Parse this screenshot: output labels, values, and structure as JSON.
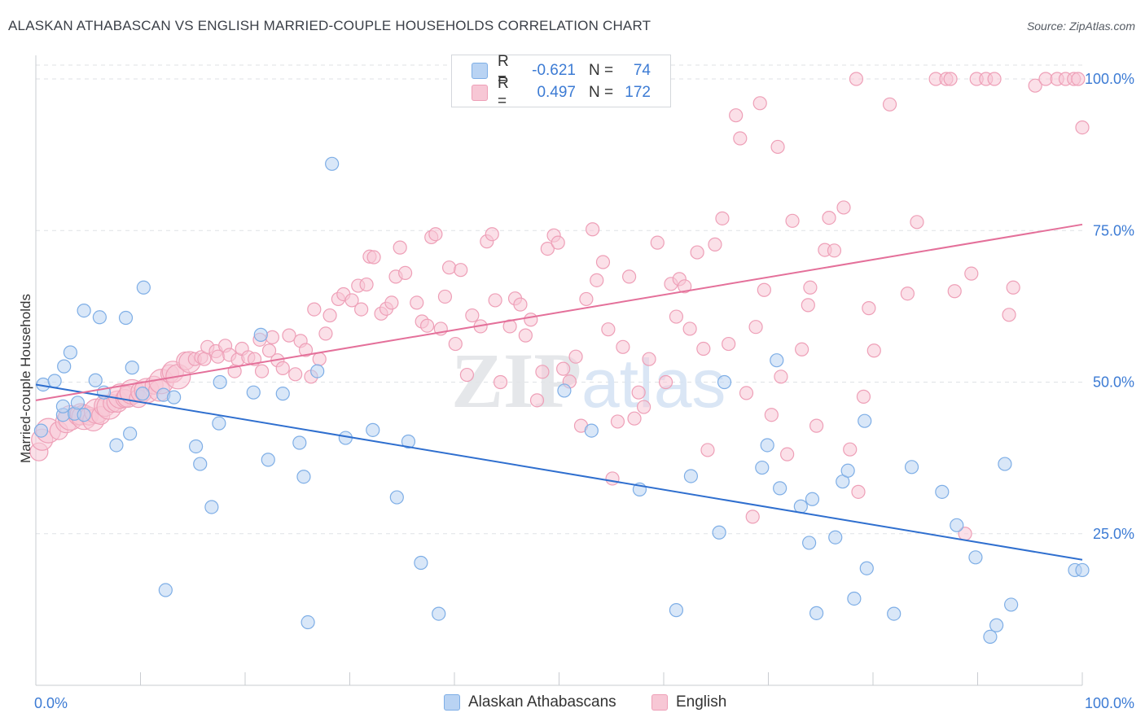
{
  "title": "ALASKAN ATHABASCAN VS ENGLISH MARRIED-COUPLE HOUSEHOLDS CORRELATION CHART",
  "source": "Source: ZipAtlas.com",
  "watermark": {
    "zip": "ZIP",
    "atlas": "atlas"
  },
  "legend": {
    "r_label": "R =",
    "n_label": "N =",
    "rows": [
      {
        "r": "-0.621",
        "n": "74"
      },
      {
        "r": "0.497",
        "n": "172"
      }
    ]
  },
  "colors": {
    "blue_fill": "#b9d3f3",
    "blue_stroke": "#7eaee6",
    "blue_line": "#2f6fcf",
    "pink_fill": "#f7c7d5",
    "pink_stroke": "#ee9fb7",
    "pink_line": "#e4709a",
    "axis_label": "#3c7bd4",
    "grid": "#dfe2e6"
  },
  "chart_data": {
    "type": "scatter",
    "title": "ALASKAN ATHABASCAN VS ENGLISH MARRIED-COUPLE HOUSEHOLDS CORRELATION CHART",
    "xlabel": "",
    "ylabel": "Married-couple Households",
    "xlim": [
      0,
      100
    ],
    "ylim": [
      0,
      100
    ],
    "x_tick_labels": [
      "0.0%",
      "100.0%"
    ],
    "y_tick_labels": [
      "25.0%",
      "50.0%",
      "75.0%",
      "100.0%"
    ],
    "y_ticks": [
      25,
      50,
      75,
      100
    ],
    "grid": true,
    "legend_position": "top-center",
    "series": [
      {
        "name": "Alaskan Athabascans",
        "r": -0.621,
        "n": 74,
        "trend": {
          "x": [
            0,
            100
          ],
          "y": [
            49.6,
            20.7
          ]
        },
        "points": [
          [
            0.5,
            42
          ],
          [
            0.7,
            49.6
          ],
          [
            1.8,
            50.2
          ],
          [
            2.6,
            44.6
          ],
          [
            2.6,
            46
          ],
          [
            2.7,
            52.6
          ],
          [
            3.3,
            54.9
          ],
          [
            3.7,
            44.8
          ],
          [
            4,
            46.6
          ],
          [
            4.6,
            44.6
          ],
          [
            4.6,
            61.8
          ],
          [
            5.7,
            50.3
          ],
          [
            6.1,
            60.7
          ],
          [
            6.5,
            48.3
          ],
          [
            7.7,
            39.6
          ],
          [
            8.6,
            60.6
          ],
          [
            9,
            41.5
          ],
          [
            9.2,
            52.4
          ],
          [
            10.2,
            48.1
          ],
          [
            10.3,
            65.6
          ],
          [
            12.2,
            47.9
          ],
          [
            12.4,
            15.7
          ],
          [
            13.2,
            47.5
          ],
          [
            15.3,
            39.4
          ],
          [
            15.7,
            36.5
          ],
          [
            16.8,
            29.4
          ],
          [
            17.5,
            43.2
          ],
          [
            17.6,
            50
          ],
          [
            20.8,
            48.3
          ],
          [
            21.5,
            57.8
          ],
          [
            22.2,
            37.2
          ],
          [
            23.6,
            48.1
          ],
          [
            25.2,
            40
          ],
          [
            25.6,
            34.4
          ],
          [
            26,
            10.4
          ],
          [
            26.9,
            51.8
          ],
          [
            28.3,
            86
          ],
          [
            29.6,
            40.8
          ],
          [
            32.2,
            42.1
          ],
          [
            34.5,
            31
          ],
          [
            35.6,
            40.2
          ],
          [
            36.8,
            20.2
          ],
          [
            38.5,
            11.8
          ],
          [
            50.5,
            48.6
          ],
          [
            53.1,
            42
          ],
          [
            57.7,
            32.3
          ],
          [
            61.2,
            12.4
          ],
          [
            62.6,
            34.5
          ],
          [
            65.3,
            25.2
          ],
          [
            65.8,
            50
          ],
          [
            69.4,
            35.9
          ],
          [
            69.9,
            39.6
          ],
          [
            70.8,
            53.6
          ],
          [
            71.1,
            32.5
          ],
          [
            73.1,
            29.5
          ],
          [
            73.9,
            23.5
          ],
          [
            74.2,
            30.7
          ],
          [
            74.6,
            11.9
          ],
          [
            76.4,
            24.4
          ],
          [
            77.1,
            33.6
          ],
          [
            77.6,
            35.4
          ],
          [
            78.2,
            14.3
          ],
          [
            79.2,
            43.6
          ],
          [
            79.4,
            19.3
          ],
          [
            82,
            11.8
          ],
          [
            83.7,
            36
          ],
          [
            86.6,
            31.9
          ],
          [
            88,
            26.4
          ],
          [
            89.8,
            21.1
          ],
          [
            91.2,
            8
          ],
          [
            91.8,
            9.9
          ],
          [
            92.6,
            36.5
          ],
          [
            93.2,
            13.3
          ],
          [
            99.3,
            19
          ],
          [
            100,
            19
          ]
        ]
      },
      {
        "name": "English",
        "r": 0.497,
        "n": 172,
        "trend": {
          "x": [
            0,
            100
          ],
          "y": [
            47,
            76
          ]
        },
        "points": [
          [
            0.3,
            38.5
          ],
          [
            0.6,
            40.5
          ],
          [
            1.2,
            42
          ],
          [
            2.2,
            42
          ],
          [
            2.9,
            43.4
          ],
          [
            3.3,
            44.1
          ],
          [
            4,
            44.4
          ],
          [
            4.3,
            44.7
          ],
          [
            4.6,
            44.2
          ],
          [
            5.1,
            44.4
          ],
          [
            5.5,
            43.7
          ],
          [
            5.8,
            45.2
          ],
          [
            6.2,
            44.5
          ],
          [
            6.6,
            46.1
          ],
          [
            7,
            45.9
          ],
          [
            7.3,
            46.5
          ],
          [
            7.8,
            46.8
          ],
          [
            8.1,
            47.7
          ],
          [
            8.5,
            47.3
          ],
          [
            8.8,
            47.6
          ],
          [
            9.2,
            48.4
          ],
          [
            9.8,
            47.3
          ],
          [
            10.1,
            48.4
          ],
          [
            10.6,
            48.6
          ],
          [
            11.3,
            49.5
          ],
          [
            11.8,
            48.6
          ],
          [
            12,
            50.1
          ],
          [
            12.8,
            51.4
          ],
          [
            13.1,
            51.7
          ],
          [
            13.6,
            50.9
          ],
          [
            14.3,
            53.5
          ],
          [
            14.7,
            53.3
          ],
          [
            15.2,
            53.8
          ],
          [
            15.8,
            54.1
          ],
          [
            16.1,
            53.8
          ],
          [
            16.4,
            55.8
          ],
          [
            17.2,
            55.1
          ],
          [
            17.4,
            54.2
          ],
          [
            18.1,
            56
          ],
          [
            18.5,
            54.5
          ],
          [
            19,
            51.8
          ],
          [
            19.3,
            53.7
          ],
          [
            19.7,
            55.5
          ],
          [
            20.3,
            54.1
          ],
          [
            20.9,
            53.8
          ],
          [
            21.4,
            57
          ],
          [
            21.6,
            51.8
          ],
          [
            22.3,
            55.2
          ],
          [
            22.6,
            57.4
          ],
          [
            23.1,
            53.6
          ],
          [
            23.6,
            52.3
          ],
          [
            24.2,
            57.7
          ],
          [
            24.8,
            51.3
          ],
          [
            25.3,
            56.8
          ],
          [
            25.8,
            55.3
          ],
          [
            26.3,
            50.9
          ],
          [
            26.6,
            62
          ],
          [
            27.1,
            53.8
          ],
          [
            27.7,
            58
          ],
          [
            28.1,
            61
          ],
          [
            28.9,
            63.7
          ],
          [
            29.4,
            64.5
          ],
          [
            30.2,
            63.5
          ],
          [
            30.8,
            65.9
          ],
          [
            31.1,
            62
          ],
          [
            31.6,
            66.1
          ],
          [
            31.9,
            70.7
          ],
          [
            32.3,
            70.6
          ],
          [
            33,
            61.3
          ],
          [
            33.5,
            62.1
          ],
          [
            34,
            63.1
          ],
          [
            34.4,
            67.4
          ],
          [
            34.8,
            72.2
          ],
          [
            35.3,
            68
          ],
          [
            36.4,
            63.1
          ],
          [
            36.9,
            60
          ],
          [
            37.4,
            59.3
          ],
          [
            37.8,
            73.9
          ],
          [
            38.2,
            74.4
          ],
          [
            38.7,
            58.8
          ],
          [
            39.1,
            64.1
          ],
          [
            39.5,
            68.9
          ],
          [
            40.1,
            56.3
          ],
          [
            40.6,
            68.5
          ],
          [
            41.2,
            51.2
          ],
          [
            41.7,
            61
          ],
          [
            42.5,
            59.2
          ],
          [
            43.1,
            73.2
          ],
          [
            43.6,
            74.4
          ],
          [
            43.9,
            63.5
          ],
          [
            44.4,
            50
          ],
          [
            45.3,
            59.2
          ],
          [
            45.8,
            63.8
          ],
          [
            46.3,
            62.8
          ],
          [
            46.8,
            57.7
          ],
          [
            47.3,
            60.3
          ],
          [
            47.9,
            47
          ],
          [
            48.4,
            51.7
          ],
          [
            48.9,
            72
          ],
          [
            49.5,
            74.2
          ],
          [
            49.9,
            73
          ],
          [
            50.4,
            52.2
          ],
          [
            51,
            50.1
          ],
          [
            51.6,
            54.2
          ],
          [
            52.1,
            42.8
          ],
          [
            52.6,
            63.7
          ],
          [
            53.2,
            75.2
          ],
          [
            53.6,
            66.8
          ],
          [
            54.2,
            69.8
          ],
          [
            54.7,
            58.7
          ],
          [
            55.1,
            34.1
          ],
          [
            55.6,
            43.5
          ],
          [
            56.1,
            55.8
          ],
          [
            56.7,
            67.4
          ],
          [
            57.2,
            44
          ],
          [
            57.6,
            48.3
          ],
          [
            58.1,
            45.9
          ],
          [
            58.6,
            53.8
          ],
          [
            59.4,
            73
          ],
          [
            60.2,
            50
          ],
          [
            60.7,
            66.2
          ],
          [
            61.2,
            60.8
          ],
          [
            61.5,
            67
          ],
          [
            62,
            65.8
          ],
          [
            62.5,
            58.8
          ],
          [
            63.2,
            71.4
          ],
          [
            63.8,
            55.5
          ],
          [
            64.2,
            38.8
          ],
          [
            64.9,
            72.7
          ],
          [
            65.6,
            77
          ],
          [
            66.2,
            56.3
          ],
          [
            66.9,
            94
          ],
          [
            67.3,
            90.2
          ],
          [
            67.9,
            48.2
          ],
          [
            68.5,
            27.8
          ],
          [
            68.8,
            59.1
          ],
          [
            69.2,
            96
          ],
          [
            69.6,
            65.2
          ],
          [
            70.3,
            44.6
          ],
          [
            70.9,
            88.8
          ],
          [
            71.2,
            50.9
          ],
          [
            71.8,
            38.1
          ],
          [
            72.3,
            76.6
          ],
          [
            73.2,
            55.4
          ],
          [
            73.8,
            62.7
          ],
          [
            74,
            65.6
          ],
          [
            74.6,
            42.8
          ],
          [
            75.4,
            71.8
          ],
          [
            75.8,
            77.1
          ],
          [
            76.3,
            71.7
          ],
          [
            77.2,
            78.8
          ],
          [
            77.8,
            38.9
          ],
          [
            78.4,
            100
          ],
          [
            78.6,
            31.9
          ],
          [
            79.1,
            47.6
          ],
          [
            79.6,
            62.2
          ],
          [
            80.1,
            55.2
          ],
          [
            81.6,
            95.8
          ],
          [
            83.3,
            64.6
          ],
          [
            84.2,
            76.4
          ],
          [
            86,
            100
          ],
          [
            87,
            100
          ],
          [
            87.4,
            100
          ],
          [
            87.8,
            65
          ],
          [
            88.8,
            25
          ],
          [
            89.4,
            67.9
          ],
          [
            89.9,
            100
          ],
          [
            90.8,
            100
          ],
          [
            91.6,
            100
          ],
          [
            93,
            61.1
          ],
          [
            93.4,
            65.6
          ],
          [
            95.5,
            98.9
          ],
          [
            96.5,
            100
          ],
          [
            97.6,
            100
          ],
          [
            98.4,
            100
          ],
          [
            99.2,
            100
          ],
          [
            99.6,
            100
          ],
          [
            100,
            92
          ]
        ]
      }
    ]
  },
  "bottom_legend": [
    "Alaskan Athabascans",
    "English"
  ]
}
